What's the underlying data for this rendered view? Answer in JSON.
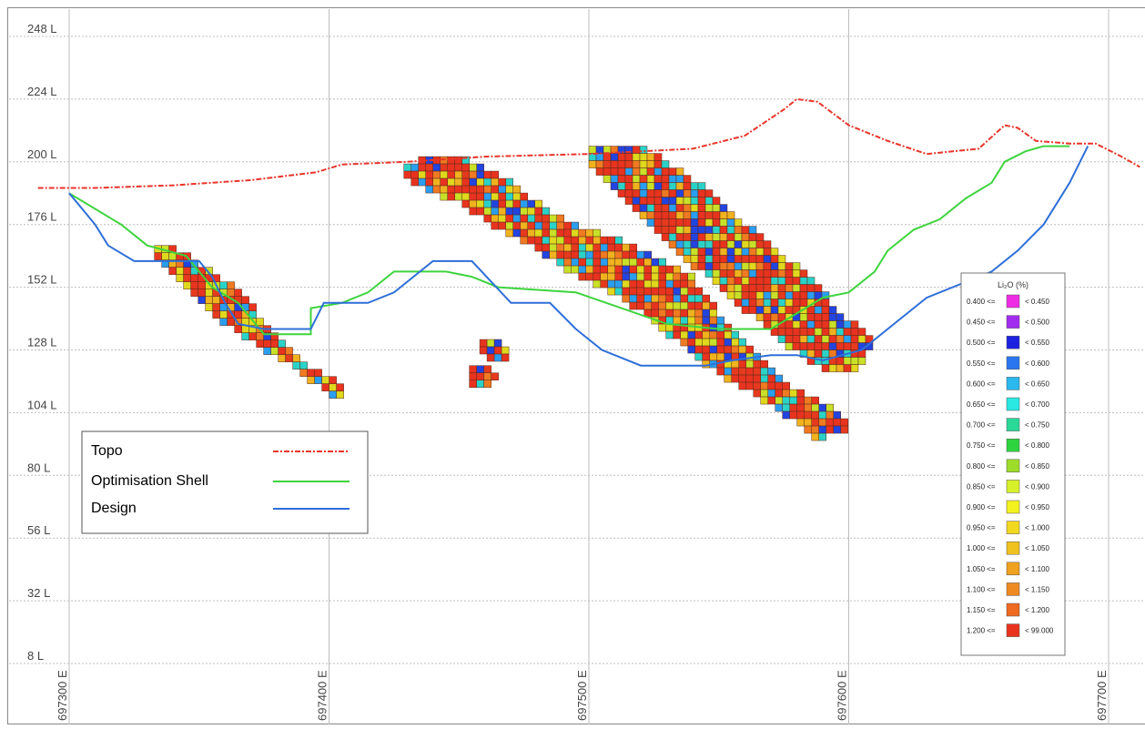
{
  "chart_data": {
    "type": "scatter",
    "title": "",
    "xlabel": "",
    "ylabel": "",
    "xlim": [
      697290,
      697710
    ],
    "ylim": [
      0,
      256
    ],
    "x_ticks": [
      {
        "value": 697300,
        "label": "697300 E"
      },
      {
        "value": 697400,
        "label": "697400 E"
      },
      {
        "value": 697500,
        "label": "697500 E"
      },
      {
        "value": 697600,
        "label": "697600 E"
      },
      {
        "value": 697700,
        "label": "697700 E"
      }
    ],
    "y_ticks": [
      {
        "value": 8,
        "label": "8 L"
      },
      {
        "value": 32,
        "label": "32 L"
      },
      {
        "value": 56,
        "label": "56 L"
      },
      {
        "value": 80,
        "label": "80 L"
      },
      {
        "value": 104,
        "label": "104 L"
      },
      {
        "value": 128,
        "label": "128 L"
      },
      {
        "value": 152,
        "label": "152 L"
      },
      {
        "value": 176,
        "label": "176 L"
      },
      {
        "value": 200,
        "label": "200 L"
      },
      {
        "value": 224,
        "label": "224 L"
      },
      {
        "value": 248,
        "label": "248 L"
      }
    ],
    "grid": true,
    "series": [
      {
        "name": "Topo",
        "color": "#e8352b",
        "style": "dash-dot",
        "points": [
          [
            697288,
            190
          ],
          [
            697310,
            190
          ],
          [
            697340,
            191
          ],
          [
            697370,
            193
          ],
          [
            697395,
            196
          ],
          [
            697405,
            199
          ],
          [
            697430,
            200
          ],
          [
            697460,
            202
          ],
          [
            697500,
            203
          ],
          [
            697540,
            205
          ],
          [
            697560,
            210
          ],
          [
            697575,
            220
          ],
          [
            697580,
            224
          ],
          [
            697588,
            223
          ],
          [
            697600,
            214
          ],
          [
            697615,
            208
          ],
          [
            697630,
            203
          ],
          [
            697650,
            205
          ],
          [
            697660,
            214
          ],
          [
            697665,
            213
          ],
          [
            697672,
            208
          ],
          [
            697685,
            207
          ],
          [
            697695,
            207
          ],
          [
            697705,
            202
          ],
          [
            697712,
            198
          ]
        ]
      },
      {
        "name": "Optimisation Shell",
        "color": "#3ed43e",
        "style": "solid",
        "points": [
          [
            697300,
            188
          ],
          [
            697310,
            182
          ],
          [
            697320,
            176
          ],
          [
            697330,
            168
          ],
          [
            697345,
            164
          ],
          [
            697355,
            152
          ],
          [
            697365,
            146
          ],
          [
            697375,
            134
          ],
          [
            697393,
            134
          ],
          [
            697393,
            144
          ],
          [
            697405,
            146
          ],
          [
            697415,
            150
          ],
          [
            697425,
            158
          ],
          [
            697445,
            158
          ],
          [
            697455,
            156
          ],
          [
            697465,
            152
          ],
          [
            697495,
            150
          ],
          [
            697530,
            138
          ],
          [
            697550,
            136
          ],
          [
            697570,
            136
          ],
          [
            697590,
            148
          ],
          [
            697600,
            150
          ],
          [
            697610,
            158
          ],
          [
            697615,
            166
          ],
          [
            697625,
            174
          ],
          [
            697635,
            178
          ],
          [
            697645,
            186
          ],
          [
            697655,
            192
          ],
          [
            697660,
            200
          ],
          [
            697668,
            204
          ],
          [
            697675,
            206
          ],
          [
            697685,
            206
          ]
        ]
      },
      {
        "name": "Design",
        "color": "#2e6fd8",
        "style": "solid",
        "points": [
          [
            697300,
            188
          ],
          [
            697305,
            182
          ],
          [
            697310,
            176
          ],
          [
            697315,
            168
          ],
          [
            697325,
            162
          ],
          [
            697350,
            162
          ],
          [
            697355,
            156
          ],
          [
            697360,
            146
          ],
          [
            697365,
            138
          ],
          [
            697375,
            136
          ],
          [
            697393,
            136
          ],
          [
            697398,
            146
          ],
          [
            697415,
            146
          ],
          [
            697425,
            150
          ],
          [
            697440,
            162
          ],
          [
            697455,
            162
          ],
          [
            697470,
            146
          ],
          [
            697485,
            146
          ],
          [
            697495,
            136
          ],
          [
            697505,
            128
          ],
          [
            697520,
            122
          ],
          [
            697545,
            122
          ],
          [
            697555,
            124
          ],
          [
            697570,
            126
          ],
          [
            697580,
            126
          ],
          [
            697590,
            124
          ],
          [
            697605,
            128
          ],
          [
            697620,
            140
          ],
          [
            697630,
            148
          ],
          [
            697655,
            158
          ],
          [
            697665,
            166
          ],
          [
            697675,
            176
          ],
          [
            697685,
            192
          ],
          [
            697692,
            206
          ]
        ]
      }
    ],
    "block_bodies": [
      {
        "polygon": [
          [
            697330,
            166
          ],
          [
            697340,
            168
          ],
          [
            697352,
            160
          ],
          [
            697366,
            150
          ],
          [
            697378,
            136
          ],
          [
            697395,
            120
          ],
          [
            697410,
            112
          ],
          [
            697402,
            110
          ],
          [
            697385,
            122
          ],
          [
            697368,
            132
          ],
          [
            697354,
            142
          ],
          [
            697342,
            154
          ]
        ]
      },
      {
        "polygon": [
          [
            697426,
            200
          ],
          [
            697450,
            202
          ],
          [
            697468,
            194
          ],
          [
            697478,
            186
          ],
          [
            697490,
            178
          ],
          [
            697502,
            174
          ],
          [
            697508,
            172
          ],
          [
            697520,
            166
          ],
          [
            697540,
            156
          ],
          [
            697552,
            140
          ],
          [
            697568,
            124
          ],
          [
            697575,
            116
          ],
          [
            697598,
            104
          ],
          [
            697600,
            96
          ],
          [
            697588,
            94
          ],
          [
            697568,
            108
          ],
          [
            697548,
            120
          ],
          [
            697530,
            134
          ],
          [
            697515,
            146
          ],
          [
            697503,
            152
          ],
          [
            697492,
            158
          ],
          [
            697480,
            166
          ],
          [
            697466,
            174
          ],
          [
            697450,
            184
          ],
          [
            697432,
            192
          ]
        ]
      },
      {
        "polygon": [
          [
            697500,
            206
          ],
          [
            697520,
            206
          ],
          [
            697540,
            194
          ],
          [
            697556,
            180
          ],
          [
            697570,
            168
          ],
          [
            697588,
            154
          ],
          [
            697598,
            140
          ],
          [
            697606,
            136
          ],
          [
            697610,
            132
          ],
          [
            697604,
            120
          ],
          [
            697592,
            120
          ],
          [
            697578,
            128
          ],
          [
            697566,
            138
          ],
          [
            697552,
            150
          ],
          [
            697538,
            162
          ],
          [
            697524,
            176
          ],
          [
            697510,
            190
          ],
          [
            697500,
            200
          ]
        ]
      },
      {
        "polygon": [
          [
            697458,
            132
          ],
          [
            697470,
            130
          ],
          [
            697469,
            122
          ],
          [
            697460,
            124
          ]
        ]
      },
      {
        "polygon": [
          [
            697455,
            122
          ],
          [
            697465,
            120
          ],
          [
            697463,
            112
          ],
          [
            697454,
            114
          ]
        ]
      }
    ],
    "block_colors": [
      "#e8331f",
      "#e8331f",
      "#e63a1e",
      "#ef7a21",
      "#f0b21e",
      "#dfd81d",
      "#c8e128",
      "#2a9ef0",
      "#2ad2c8",
      "#2244e0",
      "#e8331f",
      "#e8331f"
    ],
    "colorbar": {
      "title": "Li₂O (%)",
      "bins": [
        {
          "label": "0.400 <=",
          "upper": "< 0.450",
          "color": "#ee2ce4"
        },
        {
          "label": "0.450 <=",
          "upper": "< 0.500",
          "color": "#a22cf0"
        },
        {
          "label": "0.500 <=",
          "upper": "< 0.550",
          "color": "#1b22e0"
        },
        {
          "label": "0.550 <=",
          "upper": "< 0.600",
          "color": "#2a76ee"
        },
        {
          "label": "0.600 <=",
          "upper": "< 0.650",
          "color": "#2ab8ee"
        },
        {
          "label": "0.650 <=",
          "upper": "< 0.700",
          "color": "#2ae8e2"
        },
        {
          "label": "0.700 <=",
          "upper": "< 0.750",
          "color": "#2ad898"
        },
        {
          "label": "0.750 <=",
          "upper": "< 0.800",
          "color": "#2ed43e"
        },
        {
          "label": "0.800 <=",
          "upper": "< 0.850",
          "color": "#9edc2a"
        },
        {
          "label": "0.850 <=",
          "upper": "< 0.900",
          "color": "#d6f02a"
        },
        {
          "label": "0.900 <=",
          "upper": "< 0.950",
          "color": "#f4f21e"
        },
        {
          "label": "0.950 <=",
          "upper": "< 1.000",
          "color": "#f2d81e"
        },
        {
          "label": "1.000 <=",
          "upper": "< 1.050",
          "color": "#f0c21e"
        },
        {
          "label": "1.050 <=",
          "upper": "< 1.100",
          "color": "#efa21e"
        },
        {
          "label": "1.100 <=",
          "upper": "< 1.150",
          "color": "#ef8a20"
        },
        {
          "label": "1.150 <=",
          "upper": "< 1.200",
          "color": "#ee6a20"
        },
        {
          "label": "1.200 <=",
          "upper": "< 99.000",
          "color": "#e8331f"
        }
      ]
    },
    "legend_placement": "bottom-left"
  }
}
